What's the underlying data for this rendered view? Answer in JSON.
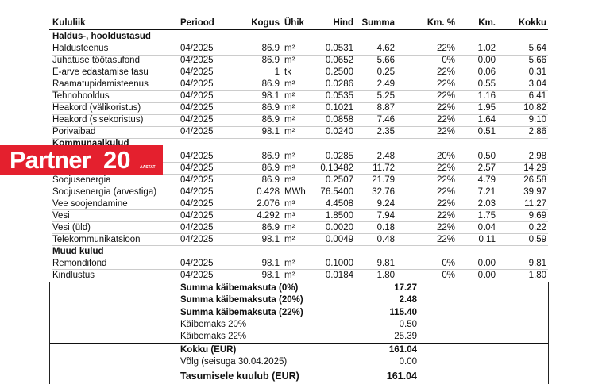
{
  "header": [
    "Kululiik",
    "Periood",
    "Kogus",
    "Ühik",
    "Hind",
    "Summa",
    "Km. %",
    "Km.",
    "Kokku"
  ],
  "sections": [
    {
      "title": "Haldus-, hooldustasud",
      "rows": [
        [
          "Haldusteenus",
          "04/2025",
          "86.9",
          "m²",
          "0.0531",
          "4.62",
          "22%",
          "1.02",
          "5.64"
        ],
        [
          "Juhatuse töötasufond",
          "04/2025",
          "86.9",
          "m²",
          "0.0652",
          "5.66",
          "0%",
          "0.00",
          "5.66"
        ],
        [
          "E-arve edastamise tasu",
          "04/2025",
          "1",
          "tk",
          "0.2500",
          "0.25",
          "22%",
          "0.06",
          "0.31"
        ],
        [
          "Raamatupidamisteenus",
          "04/2025",
          "86.9",
          "m²",
          "0.0286",
          "2.49",
          "22%",
          "0.55",
          "3.04"
        ],
        [
          "Tehnohooldus",
          "04/2025",
          "98.1",
          "m²",
          "0.0535",
          "5.25",
          "22%",
          "1.16",
          "6.41"
        ],
        [
          "Heakord (välikoristus)",
          "04/2025",
          "86.9",
          "m²",
          "0.1021",
          "8.87",
          "22%",
          "1.95",
          "10.82"
        ],
        [
          "Heakord (sisekoristus)",
          "04/2025",
          "86.9",
          "m²",
          "0.0858",
          "7.46",
          "22%",
          "1.64",
          "9.10"
        ],
        [
          "Porivaibad",
          "04/2025",
          "98.1",
          "m²",
          "0.0240",
          "2.35",
          "22%",
          "0.51",
          "2.86"
        ]
      ]
    },
    {
      "title": "Kommunaalkulud",
      "rows": [
        [
          null,
          "04/2025",
          "86.9",
          "m²",
          "0.0285",
          "2.48",
          "20%",
          "0.50",
          "2.98"
        ],
        [
          null,
          "04/2025",
          "86.9",
          "m²",
          "0.13482",
          "11.72",
          "22%",
          "2.57",
          "14.29"
        ],
        [
          "Soojusenergia",
          "04/2025",
          "86.9",
          "m²",
          "0.2507",
          "21.79",
          "22%",
          "4.79",
          "26.58"
        ],
        [
          "Soojusenergia (arvestiga)",
          "04/2025",
          "0.428",
          "MWh",
          "76.5400",
          "32.76",
          "22%",
          "7.21",
          "39.97"
        ],
        [
          "Vee soojendamine",
          "04/2025",
          "2.076",
          "m³",
          "4.4508",
          "9.24",
          "22%",
          "2.03",
          "11.27"
        ],
        [
          "Vesi",
          "04/2025",
          "4.292",
          "m³",
          "1.8500",
          "7.94",
          "22%",
          "1.75",
          "9.69"
        ],
        [
          "Vesi (üld)",
          "04/2025",
          "86.9",
          "m²",
          "0.0020",
          "0.18",
          "22%",
          "0.04",
          "0.22"
        ],
        [
          "Telekommunikatsioon",
          "04/2025",
          "98.1",
          "m²",
          "0.0049",
          "0.48",
          "22%",
          "0.11",
          "0.59"
        ]
      ]
    },
    {
      "title": "Muud kulud",
      "rows": [
        [
          "Remondifond",
          "04/2025",
          "98.1",
          "m²",
          "0.1000",
          "9.81",
          "0%",
          "0.00",
          "9.81"
        ],
        [
          "Kindlustus",
          "04/2025",
          "98.1",
          "m²",
          "0.0184",
          "1.80",
          "0%",
          "0.00",
          "1.80"
        ]
      ]
    }
  ],
  "summary": [
    {
      "label": "Summa käibemaksuta (0%)",
      "value": "17.27",
      "bold": true
    },
    {
      "label": "Summa käibemaksuta (20%)",
      "value": "2.48",
      "bold": true
    },
    {
      "label": "Summa käibemaksuta (22%)",
      "value": "115.40",
      "bold": true
    },
    {
      "label": "Käibemaks 20%",
      "value": "0.50",
      "bold": false
    },
    {
      "label": "Käibemaks 22%",
      "value": "25.39",
      "bold": false
    },
    {
      "label": "Kokku (EUR)",
      "value": "161.04",
      "bold": true
    },
    {
      "label": "Võlg (seisuga 30.04.2025)",
      "value": "0.00",
      "bold": false
    },
    {
      "label": "Tasumisele kuulub (EUR)",
      "value": "161.04",
      "bold": true
    }
  ],
  "logo": {
    "name": "Partner",
    "number": "20",
    "tag": "AASTAT"
  }
}
